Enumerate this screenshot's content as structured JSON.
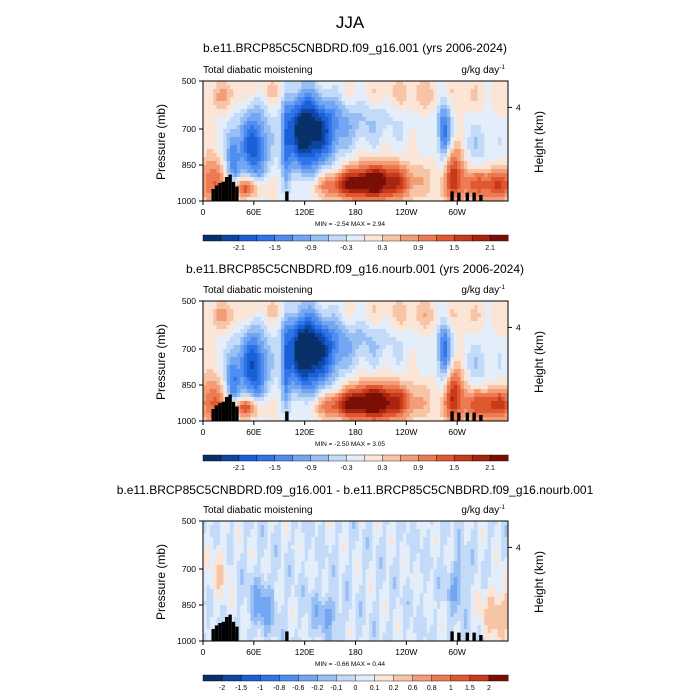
{
  "figure_title": "JJA",
  "chart_data": [
    {
      "type": "heatmap",
      "title": "b.e11.BRCP85C5CNBDRD.f09_g16.001 (yrs 2006-2024)",
      "left_label": "Total diabatic moistening",
      "units": "g/kg day",
      "units_exp": "-1",
      "ylabel": "Pressure (mb)",
      "y2label": "Height (km)",
      "yticks": [
        "500",
        "700",
        "850",
        "1000"
      ],
      "y2ticks": [
        "4"
      ],
      "xticks": [
        "0",
        "60E",
        "120E",
        "180",
        "120W",
        "60W"
      ],
      "ylim": [
        1000,
        500
      ],
      "x_domain": [
        0,
        360
      ],
      "min_label": "MIN = -2.54  MAX = 2.94",
      "min": -2.54,
      "max": 2.94,
      "colorbar_labels": [
        "-2.1",
        "-1.5",
        "-0.9",
        "-0.3",
        "0.3",
        "0.9",
        "1.5",
        "2.1"
      ],
      "colorbar_levels": [
        -2.4,
        -2.1,
        -1.8,
        -1.5,
        -1.2,
        -0.9,
        -0.6,
        -0.3,
        0,
        0.3,
        0.6,
        0.9,
        1.2,
        1.5,
        1.8,
        2.1,
        2.4
      ],
      "grid": false
    },
    {
      "type": "heatmap",
      "title": "b.e11.BRCP85C5CNBDRD.f09_g16.nourb.001 (yrs 2006-2024)",
      "left_label": "Total diabatic moistening",
      "units": "g/kg day",
      "units_exp": "-1",
      "ylabel": "Pressure (mb)",
      "y2label": "Height (km)",
      "yticks": [
        "500",
        "700",
        "850",
        "1000"
      ],
      "y2ticks": [
        "4"
      ],
      "xticks": [
        "0",
        "60E",
        "120E",
        "180",
        "120W",
        "60W"
      ],
      "ylim": [
        1000,
        500
      ],
      "x_domain": [
        0,
        360
      ],
      "min_label": "MIN = -2.50  MAX = 3.05",
      "min": -2.5,
      "max": 3.05,
      "colorbar_labels": [
        "-2.1",
        "-1.5",
        "-0.9",
        "-0.3",
        "0.3",
        "0.9",
        "1.5",
        "2.1"
      ],
      "colorbar_levels": [
        -2.4,
        -2.1,
        -1.8,
        -1.5,
        -1.2,
        -0.9,
        -0.6,
        -0.3,
        0,
        0.3,
        0.6,
        0.9,
        1.2,
        1.5,
        1.8,
        2.1,
        2.4
      ],
      "grid": false
    },
    {
      "type": "heatmap",
      "title": "b.e11.BRCP85C5CNBDRD.f09_g16.001 - b.e11.BRCP85C5CNBDRD.f09_g16.nourb.001",
      "left_label": "Total diabatic moistening",
      "units": "g/kg day",
      "units_exp": "-1",
      "ylabel": "Pressure (mb)",
      "y2label": "Height (km)",
      "yticks": [
        "500",
        "700",
        "850",
        "1000"
      ],
      "y2ticks": [
        "4"
      ],
      "xticks": [
        "0",
        "60E",
        "120E",
        "180",
        "120W",
        "60W"
      ],
      "ylim": [
        1000,
        500
      ],
      "x_domain": [
        0,
        360
      ],
      "min_label": "MIN = -0.66  MAX = 0.44",
      "min": -0.66,
      "max": 0.44,
      "colorbar_labels": [
        "-2",
        "-1.5",
        "-1",
        "-0.8",
        "-0.6",
        "-0.2",
        "-0.1",
        "0",
        "0.1",
        "0.2",
        "0.6",
        "0.8",
        "1",
        "1.5",
        "2"
      ],
      "grid": false
    }
  ],
  "colors": {
    "colormap": [
      "#08306b",
      "#0d47a1",
      "#1a5fd6",
      "#2f74e8",
      "#4f8df0",
      "#72a6f2",
      "#98bff4",
      "#c3daf8",
      "#e4eefb",
      "#fbe5d6",
      "#f8c4a6",
      "#f39c76",
      "#ec7a52",
      "#e0582f",
      "#c83a1c",
      "#a62410",
      "#7a0f05"
    ],
    "terrain": "#000000"
  }
}
